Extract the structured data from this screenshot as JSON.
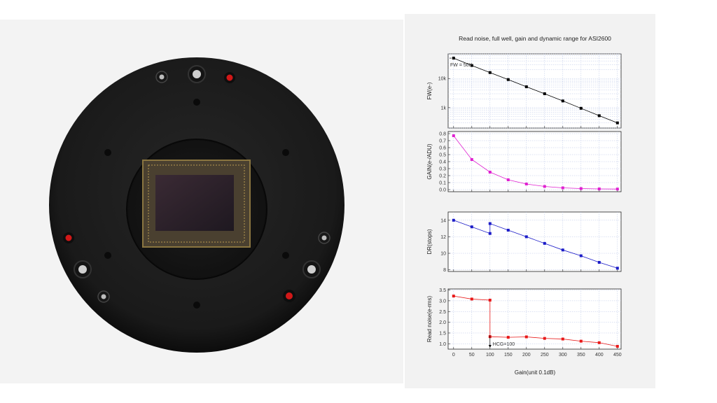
{
  "photo": {
    "colors": {
      "body": "#1c1c1c",
      "body_edge": "#0c0c0c",
      "sensor": "#2a2026",
      "accent_red": "#d11818"
    }
  },
  "chart_data": {
    "type": "line",
    "title": "Read noise, full well, gain and dynamic range for ASI2600",
    "xlabel": "Gain(unit 0.1dB)",
    "x_ticks": [
      0,
      50,
      100,
      150,
      200,
      250,
      300,
      350,
      400,
      450
    ],
    "xlim": [
      -15,
      460
    ],
    "panels": [
      {
        "ylabel": "FW(e-)",
        "scale": "log",
        "ylim": [
          200,
          70000
        ],
        "y_ticks": [
          1000,
          10000
        ],
        "y_tick_labels": [
          "1k",
          "10k"
        ],
        "color": "#000000",
        "x": [
          0,
          50,
          100,
          150,
          200,
          250,
          300,
          350,
          400,
          450
        ],
        "y": [
          50000,
          28000,
          16000,
          9200,
          5200,
          3000,
          1700,
          950,
          530,
          300
        ],
        "annotation": "FW = 50K"
      },
      {
        "ylabel": "GAIN(e-/ADU)",
        "scale": "linear",
        "ylim": [
          -0.03,
          0.83
        ],
        "y_ticks": [
          0.0,
          0.1,
          0.2,
          0.3,
          0.4,
          0.5,
          0.6,
          0.7,
          0.8
        ],
        "y_tick_labels": [
          "0.0",
          "0.1",
          "0.2",
          "0.3",
          "0.4",
          "0.5",
          "0.6",
          "0.7",
          "0.8"
        ],
        "color": "#e020d0",
        "x": [
          0,
          50,
          100,
          150,
          200,
          250,
          300,
          350,
          400,
          450
        ],
        "y": [
          0.77,
          0.43,
          0.25,
          0.14,
          0.08,
          0.045,
          0.025,
          0.015,
          0.01,
          0.008
        ]
      },
      {
        "ylabel": "DR(stops)",
        "scale": "linear",
        "ylim": [
          7.8,
          15
        ],
        "y_ticks": [
          8,
          10,
          12,
          14
        ],
        "y_tick_labels": [
          "8",
          "10",
          "12",
          "14"
        ],
        "color": "#1c1cc8",
        "x": [
          0,
          50,
          100,
          100,
          150,
          200,
          250,
          300,
          350,
          400,
          450
        ],
        "y": [
          14.0,
          13.2,
          12.4,
          13.6,
          12.8,
          12.0,
          11.2,
          10.4,
          9.7,
          8.9,
          8.2
        ]
      },
      {
        "ylabel": "Read noise(e-rms)",
        "scale": "linear",
        "ylim": [
          0.75,
          3.55
        ],
        "y_ticks": [
          1.0,
          1.5,
          2.0,
          2.5,
          3.0,
          3.5
        ],
        "y_tick_labels": [
          "1.0",
          "1.5",
          "2.0",
          "2.5",
          "3.0",
          "3.5"
        ],
        "color": "#e81818",
        "x": [
          0,
          50,
          100,
          100,
          150,
          200,
          250,
          300,
          350,
          400,
          450
        ],
        "y": [
          3.22,
          3.08,
          3.03,
          1.33,
          1.3,
          1.32,
          1.25,
          1.22,
          1.12,
          1.05,
          0.88
        ],
        "annotation": "HCG=100"
      }
    ]
  }
}
